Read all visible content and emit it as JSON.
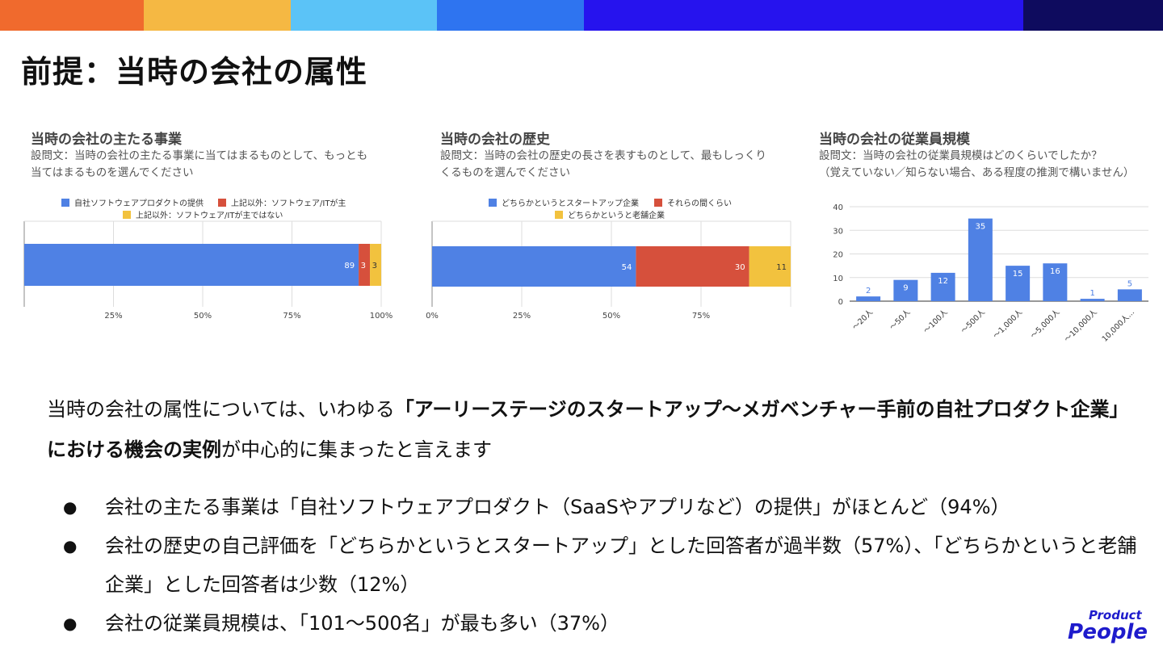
{
  "slide": {
    "title": "前提：当時の会社の属性",
    "band_colors": [
      "#F06A2D",
      "#F5B843",
      "#5BC3F7",
      "#2E74F0",
      "#2613EE",
      "#0E0B5E"
    ]
  },
  "charts": {
    "business": {
      "title": "当時の会社の主たる事業",
      "question_lines": [
        "設問文：当時の会社の主たる事業に当てはまるものとして、もっとも",
        "当てはまるものを選んでください"
      ]
    },
    "history": {
      "title": "当時の会社の歴史",
      "question_lines": [
        "設問文：当時の会社の歴史の長さを表すものとして、最もしっくり",
        "くるものを選んでください"
      ]
    },
    "employees": {
      "title": "当時の会社の従業員規模",
      "question_lines": [
        "設問文：当時の会社の従業員規模はどのくらいでしたか？",
        "（覚えていない／知らない場合、ある程度の推測で構いません）"
      ]
    }
  },
  "chart_data": [
    {
      "type": "bar",
      "orientation": "horizontal",
      "stacked": true,
      "normalized": true,
      "series": [
        {
          "name": "自社ソフトウェアプロダクトの提供",
          "values": [
            89
          ],
          "color": "#4F81E4"
        },
        {
          "name": "上記以外：ソフトウェア/ITが主",
          "values": [
            3
          ],
          "color": "#D6503C"
        },
        {
          "name": "上記以外：ソフトウェア/ITが主ではない",
          "values": [
            3
          ],
          "color": "#F2C23E"
        }
      ],
      "xticks": [
        "25%",
        "50%",
        "75%",
        "100%"
      ],
      "legend": "top",
      "grid": true
    },
    {
      "type": "bar",
      "orientation": "horizontal",
      "stacked": true,
      "normalized": true,
      "series": [
        {
          "name": "どちらかというとスタートアップ企業",
          "values": [
            54
          ],
          "color": "#4F81E4"
        },
        {
          "name": "それらの間くらい",
          "values": [
            30
          ],
          "color": "#D6503C"
        },
        {
          "name": "どちらかというと老舗企業",
          "values": [
            11
          ],
          "color": "#F2C23E"
        }
      ],
      "xticks": [
        "0%",
        "25%",
        "50%",
        "75%"
      ],
      "legend": "top",
      "grid": true
    },
    {
      "type": "bar",
      "categories": [
        "〜20人",
        "〜50人",
        "〜100人",
        "〜500人",
        "〜1,000人",
        "〜5,000人",
        "〜10,000人",
        "10,000人..."
      ],
      "values": [
        2,
        9,
        12,
        35,
        15,
        16,
        1,
        5
      ],
      "ylim": [
        0,
        40
      ],
      "yticks": [
        "0",
        "10",
        "20",
        "30",
        "40"
      ],
      "color": "#4F81E4",
      "grid": true
    }
  ],
  "summary": {
    "pre": "当時の会社の属性については、いわゆる",
    "bold1": "「アーリーステージのスタートアップ〜メガベンチャー手前の自社プロダクト企業」における機会の実例",
    "post": "が中心的に集まったと言えます"
  },
  "bullets": [
    "会社の主たる事業は「自社ソフトウェアプロダクト（SaaSやアプリなど）の提供」がほとんど（94%）",
    "会社の歴史の自己評価を「どちらかというとスタートアップ」とした回答者が過半数（57%）、「どちらかというと老舗企業」とした回答者は少数（12%）",
    "会社の従業員規模は、「101〜500名」が最も多い（37%）"
  ],
  "bullet_symbol": "●",
  "logo": {
    "line1": "Product",
    "line2": "People"
  }
}
